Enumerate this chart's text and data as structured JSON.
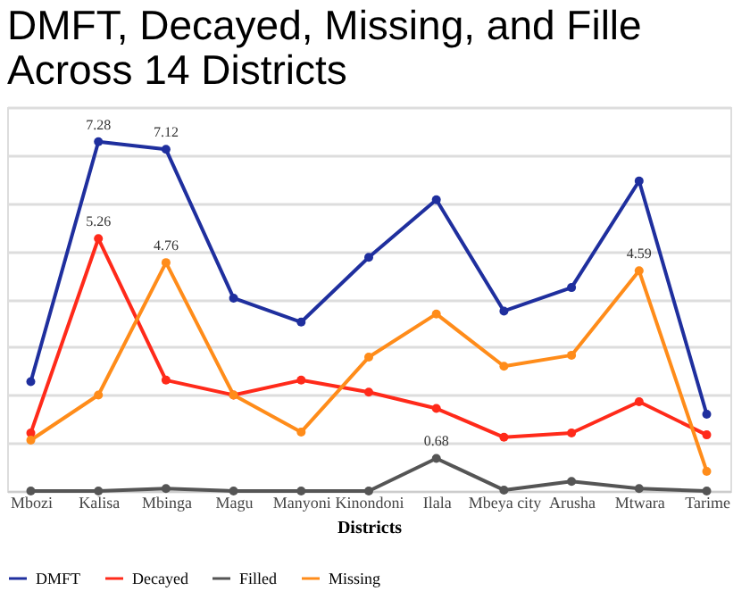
{
  "chart_data": {
    "type": "line",
    "title": [
      "DMFT, Decayed, Missing, and Fille",
      "Across 14 Districts"
    ],
    "xlabel": "Districts",
    "categories": [
      "Mbozi",
      "Kalisa",
      "Mbinga",
      "Magu",
      "Manyoni",
      "Kinondoni",
      "Ilala",
      "Mbeya city",
      "Arusha",
      "Mtwara",
      "Tarime"
    ],
    "series": [
      {
        "name": "DMFT",
        "color": "#1f2f9e",
        "values": [
          2.28,
          7.28,
          7.12,
          4.02,
          3.52,
          4.87,
          6.07,
          3.75,
          4.24,
          6.46,
          1.6
        ],
        "value_labels": [
          null,
          "7.28",
          "7.12",
          null,
          null,
          null,
          null,
          null,
          null,
          null,
          null
        ]
      },
      {
        "name": "Decayed",
        "color": "#ff2a1a",
        "values": [
          1.21,
          5.26,
          2.31,
          2.0,
          2.31,
          2.06,
          1.72,
          1.12,
          1.21,
          1.86,
          1.17
        ],
        "value_labels": [
          null,
          "5.26",
          null,
          null,
          null,
          null,
          null,
          null,
          null,
          null,
          null
        ]
      },
      {
        "name": "Filled",
        "color": "#555555",
        "values": [
          0,
          0,
          0.05,
          0,
          0,
          0,
          0.68,
          0.02,
          0.2,
          0.05,
          0
        ],
        "value_labels": [
          null,
          null,
          null,
          null,
          null,
          null,
          "0.68",
          null,
          null,
          null,
          null
        ]
      },
      {
        "name": "Missing",
        "color": "#ff8c1a",
        "values": [
          1.06,
          2.0,
          4.76,
          2.0,
          1.23,
          2.79,
          3.69,
          2.6,
          2.83,
          4.59,
          0.41
        ],
        "value_labels": [
          null,
          null,
          "4.76",
          null,
          null,
          null,
          null,
          null,
          null,
          "4.59",
          null
        ]
      }
    ],
    "tick_labels": "x",
    "grid": "y",
    "legend": "bottom",
    "marker": "circle",
    "line_style": "solid"
  }
}
